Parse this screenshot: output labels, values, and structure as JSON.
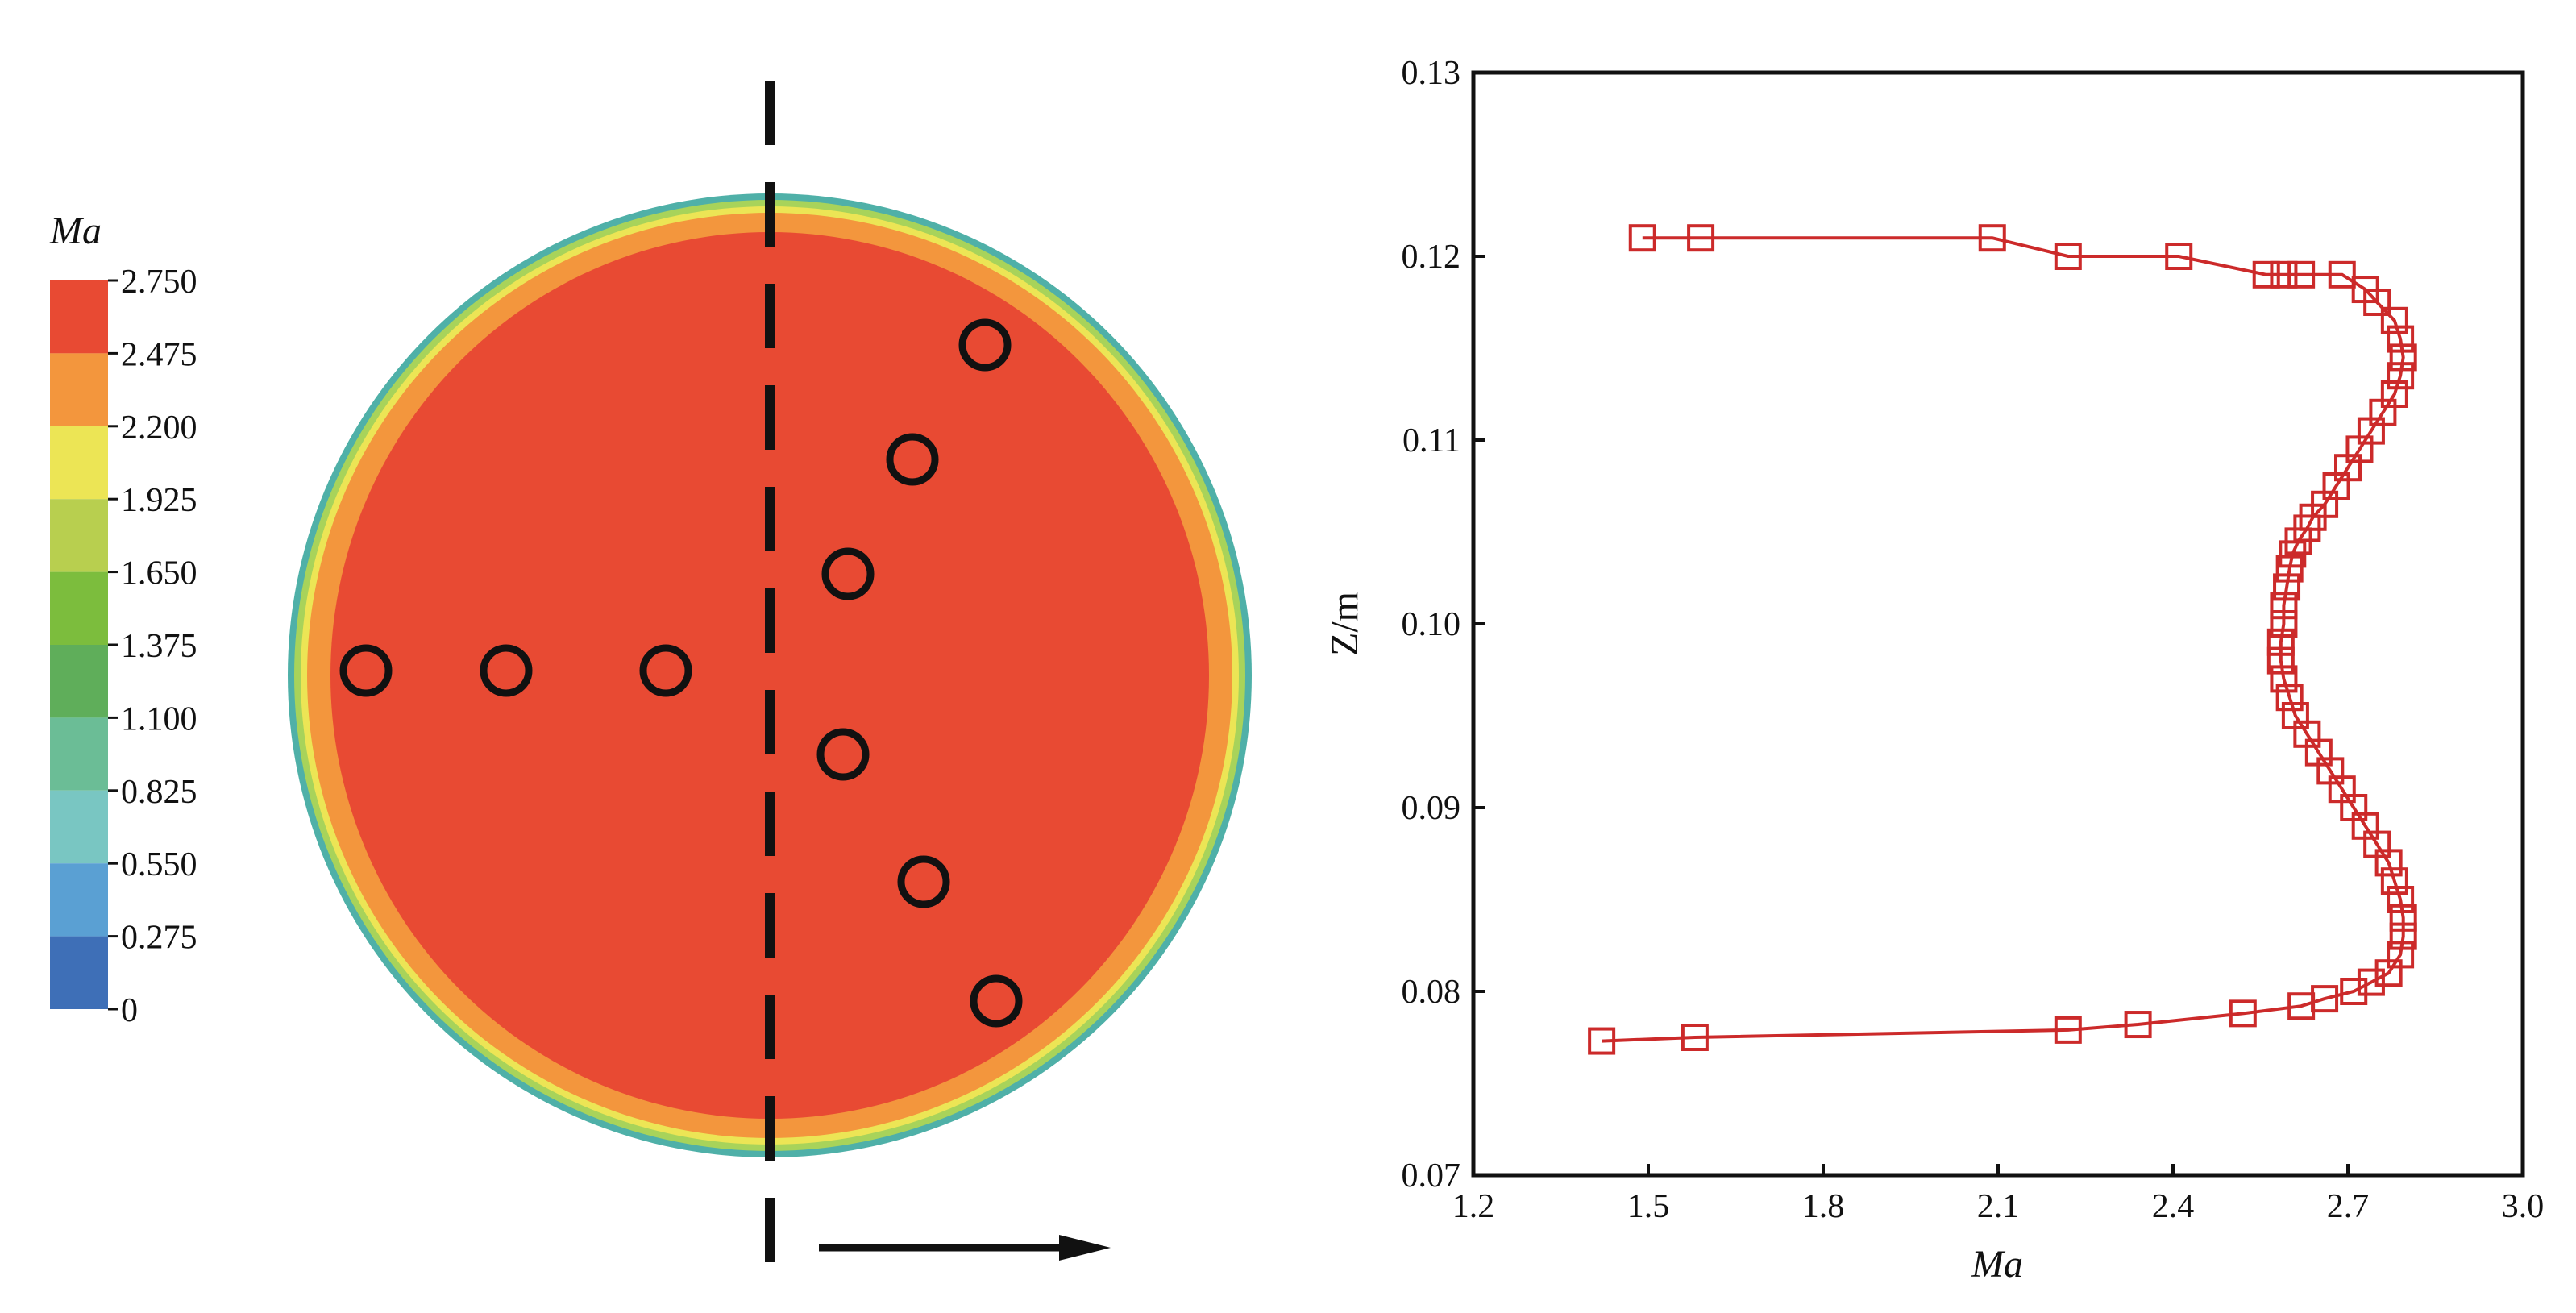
{
  "colorbar": {
    "title": "Ma",
    "levels": [
      "2.750",
      "2.475",
      "2.200",
      "1.925",
      "1.650",
      "1.375",
      "1.100",
      "0.825",
      "0.550",
      "0.275",
      "0"
    ],
    "colors": [
      "#e84a33",
      "#f3963d",
      "#ece555",
      "#b8cf4f",
      "#7cbd3d",
      "#5fae5a",
      "#6bbd96",
      "#79c6c2",
      "#5aa0d3",
      "#3e6fb7"
    ]
  },
  "contour": {
    "core_color": "#e84a33",
    "probe_count": 9,
    "probe_icon": "circle-marker-icon",
    "arrow_icon": "arrow-right-icon",
    "centerline": "dashed"
  },
  "chart_data": {
    "type": "line",
    "xlabel": "Ma",
    "ylabel": "Z/m",
    "xlim": [
      1.2,
      3.0
    ],
    "ylim": [
      0.07,
      0.13
    ],
    "xticks": [
      "1.2",
      "1.5",
      "1.8",
      "2.1",
      "2.4",
      "2.7",
      "3.0"
    ],
    "yticks": [
      "0.07",
      "0.08",
      "0.09",
      "0.10",
      "0.11",
      "0.12",
      "0.13"
    ],
    "grid": false,
    "series": [
      {
        "color": "#cc2a2a",
        "marker": "square",
        "x": [
          1.49,
          1.59,
          2.09,
          2.22,
          2.41,
          2.56,
          2.59,
          2.62,
          2.69,
          2.73,
          2.75,
          2.78,
          2.79,
          2.795,
          2.79,
          2.78,
          2.76,
          2.74,
          2.72,
          2.7,
          2.68,
          2.66,
          2.64,
          2.63,
          2.615,
          2.605,
          2.6,
          2.595,
          2.59,
          2.59,
          2.585,
          2.585,
          2.59,
          2.6,
          2.61,
          2.63,
          2.65,
          2.67,
          2.69,
          2.71,
          2.73,
          2.75,
          2.77,
          2.78,
          2.79,
          2.795,
          2.795,
          2.79,
          2.77,
          2.74,
          2.71,
          2.66,
          2.62,
          2.52,
          2.34,
          2.22,
          1.58,
          1.42
        ],
        "y": [
          0.121,
          0.121,
          0.121,
          0.12,
          0.12,
          0.119,
          0.119,
          0.119,
          0.119,
          0.1182,
          0.1175,
          0.1165,
          0.1155,
          0.1145,
          0.1135,
          0.1125,
          0.1115,
          0.1105,
          0.1095,
          0.1085,
          0.1075,
          0.1065,
          0.1058,
          0.1052,
          0.1045,
          0.1038,
          0.103,
          0.102,
          0.101,
          0.1,
          0.099,
          0.098,
          0.097,
          0.096,
          0.095,
          0.094,
          0.093,
          0.092,
          0.091,
          0.09,
          0.089,
          0.088,
          0.087,
          0.086,
          0.085,
          0.084,
          0.083,
          0.082,
          0.081,
          0.0805,
          0.08,
          0.0796,
          0.0792,
          0.0788,
          0.0782,
          0.0779,
          0.0775,
          0.0773
        ]
      }
    ]
  }
}
